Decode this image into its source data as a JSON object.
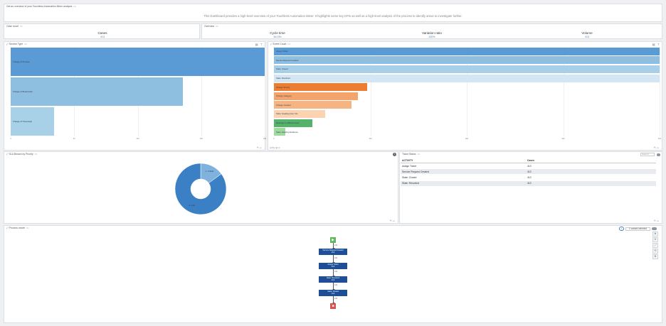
{
  "intro": {
    "title": "Get an overview of your Touchless Automation Miner analysis",
    "more": "•••",
    "subtitle": "This Dashboard provides a high-level overview of your Touchless Automation Miner. It highlights some key KPIs as well as a high-level analysis of the process to identify areas to investigate further."
  },
  "case_count": {
    "title": "Case count",
    "more": "•••",
    "label": "Cases",
    "value": "413"
  },
  "overview": {
    "title": "Overview",
    "more": "•••",
    "kpis": [
      {
        "label": "Cycle time",
        "value": "5d 22h"
      },
      {
        "label": "Variation ratio",
        "value": "100%"
      },
      {
        "label": "Volume",
        "value": "413"
      }
    ]
  },
  "service_type": {
    "title": "Service Type",
    "more": "•••",
    "footer_icons": "⇱ ▭"
  },
  "event_count": {
    "title": "Event Count",
    "more": "•••",
    "footer_left": "⊞ by up ⊙",
    "footer_icons": "⇱ ▭"
  },
  "sla_priority": {
    "title": "SLA Breach by Priority",
    "more": "•••",
    "info": "i",
    "footer_icons": "⇱ ▭"
  },
  "ticket_status": {
    "title": "Ticket Status",
    "more": "•••",
    "search": "Search",
    "columns": [
      "ACTIVITY",
      "Cases"
    ],
    "rows": [
      [
        "Assign Ticket",
        "413"
      ],
      [
        "Service Request Created",
        "413"
      ],
      [
        "State: Closed",
        "413"
      ],
      [
        "State: Resolved",
        "413"
      ]
    ],
    "footer_icons": "⇱ ▭"
  },
  "process_model": {
    "title": "Process model",
    "more": "•••",
    "variant_count": "1",
    "variant_text": "1 variant selected",
    "start_icon": "▶",
    "end_icon": "■",
    "activities": [
      {
        "name": "Service Request Created",
        "count": "413"
      },
      {
        "name": "Assign Ticket",
        "count": "413"
      },
      {
        "name": "State: Resolved",
        "count": "413"
      },
      {
        "name": "State: Closed",
        "count": "413"
      }
    ],
    "edges": [
      "413",
      "413",
      "413",
      "413",
      "413"
    ],
    "tools": [
      "⊕",
      "⊖",
      "⤢",
      "⟲",
      "⚙"
    ]
  },
  "chart_data": [
    {
      "type": "bar",
      "orientation": "horizontal",
      "title": "Service Type",
      "categories": [
        "Change of Process",
        "Change of Bookmarks",
        "Change of Ownership"
      ],
      "values": [
        413,
        280,
        70
      ],
      "colors": [
        "#5b9bd5",
        "#8fbfe0",
        "#a8d0e6"
      ],
      "xlim": [
        0,
        413
      ],
      "xticks": [
        "0",
        "50",
        "100",
        "150",
        "200"
      ],
      "grid": true
    },
    {
      "type": "bar",
      "orientation": "horizontal",
      "title": "Event Count",
      "categories": [
        "Assign Ticket",
        "Service Request Created",
        "State: Closed",
        "State: Resolved",
        "Change Priority",
        "Change Category",
        "Change Created",
        "State: Awaiting User Info",
        "Reassign to different team",
        "State: Awaiting Evidence"
      ],
      "values": [
        413,
        413,
        413,
        413,
        100,
        90,
        83,
        55,
        41,
        12
      ],
      "colors": [
        "#5b9bd5",
        "#8fbfe0",
        "#a8cfe8",
        "#d4e6f4",
        "#ed7d31",
        "#f4a46b",
        "#f6b482",
        "#fbd3b0",
        "#55b26b",
        "#9ed99e"
      ],
      "xlim": [
        0,
        413
      ],
      "xticks": [
        "0",
        "100",
        "200",
        "300",
        "400"
      ],
      "grid": true
    },
    {
      "type": "pie",
      "variant": "donut",
      "title": "SLA Breach by Priority",
      "slices": [
        {
          "label": "1 - Critical",
          "value": 15,
          "color": "#7fb3dd"
        },
        {
          "label": "3 - Low",
          "value": 85,
          "color": "#3b7fc4"
        }
      ]
    }
  ]
}
